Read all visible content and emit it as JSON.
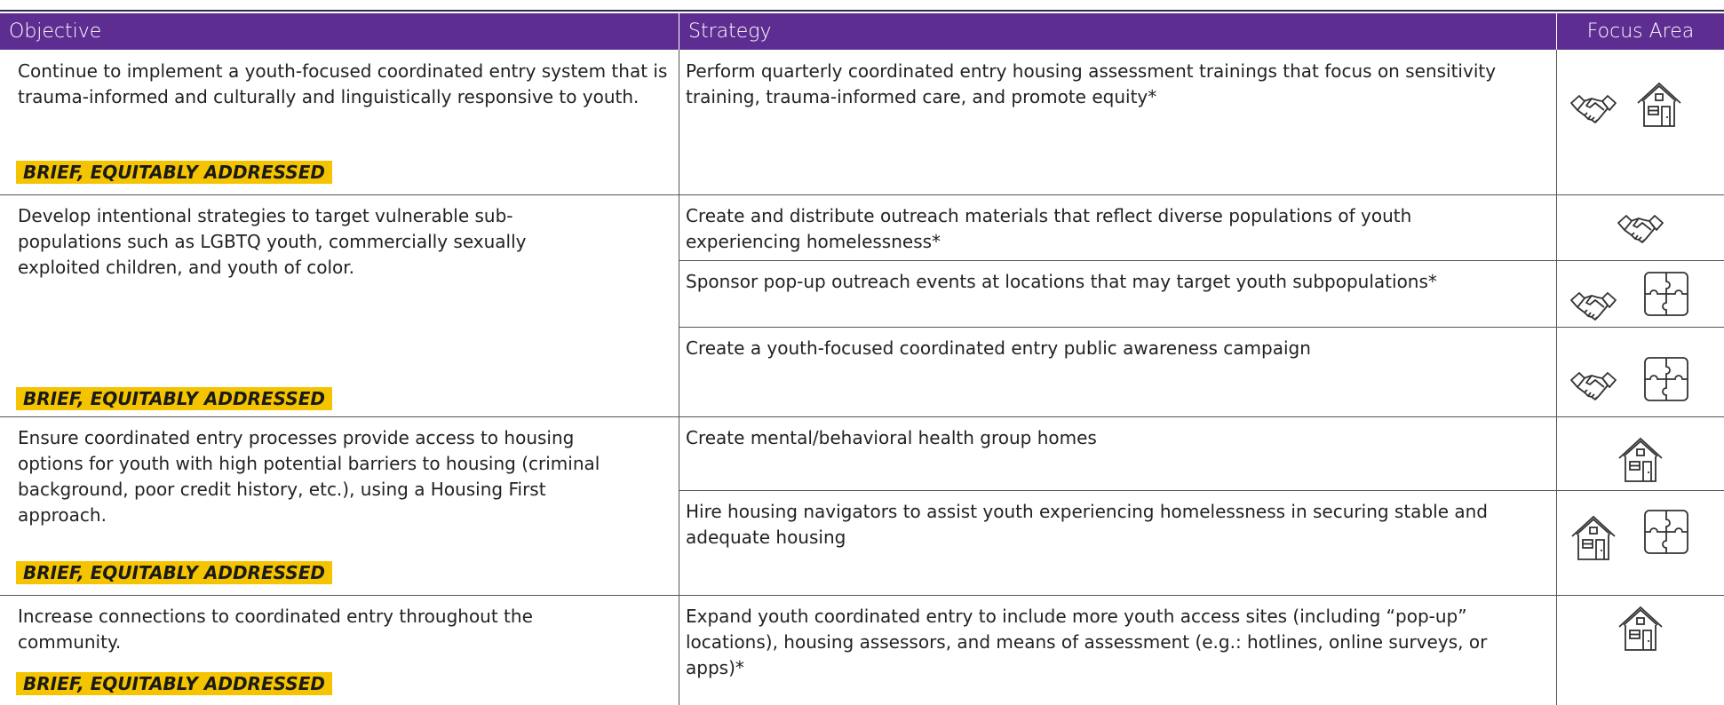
{
  "header": {
    "columns": [
      "Objective",
      "Strategy",
      "Focus Area"
    ]
  },
  "rows": [
    {
      "objective": "Continue to implement a youth-focused coordinated entry system that is trauma-informed and culturally and linguistically responsive to youth.",
      "tag": "BRIEF, EQUITABLY ADDRESSED",
      "strategies": [
        "Perform quarterly coordinated entry housing assessment trainings that focus on sensitivity training, trauma-informed care, and promote equity*"
      ]
    },
    {
      "objective": "Develop intentional strategies to target vulnerable sub-populations such as LGBTQ youth, commercially sexually exploited children, and youth of color.",
      "tag": "BRIEF, EQUITABLY ADDRESSED",
      "strategies": [
        "Create and distribute outreach materials that reflect diverse populations of youth experiencing homelessness*",
        "Sponsor pop-up outreach events at locations that may target youth subpopulations*",
        "Create a youth-focused coordinated entry public awareness campaign"
      ]
    },
    {
      "objective": "Ensure coordinated entry processes provide access to housing options for youth with high potential barriers to housing (criminal background, poor credit history, etc.), using a Housing First approach.",
      "tag": "BRIEF, EQUITABLY ADDRESSED",
      "strategies": [
        "Create mental/behavioral health group homes",
        "Hire housing navigators to assist youth experiencing homelessness in securing stable and adequate housing"
      ]
    },
    {
      "objective": "Increase connections to coordinated entry throughout the community.",
      "tag": "BRIEF, EQUITABLY ADDRESSED",
      "strategies": [
        "Expand youth coordinated entry to include more youth access sites (including “pop-up” locations), housing assessors, and means of assessment (e.g.: hotlines, online surveys, or apps)*"
      ]
    }
  ]
}
